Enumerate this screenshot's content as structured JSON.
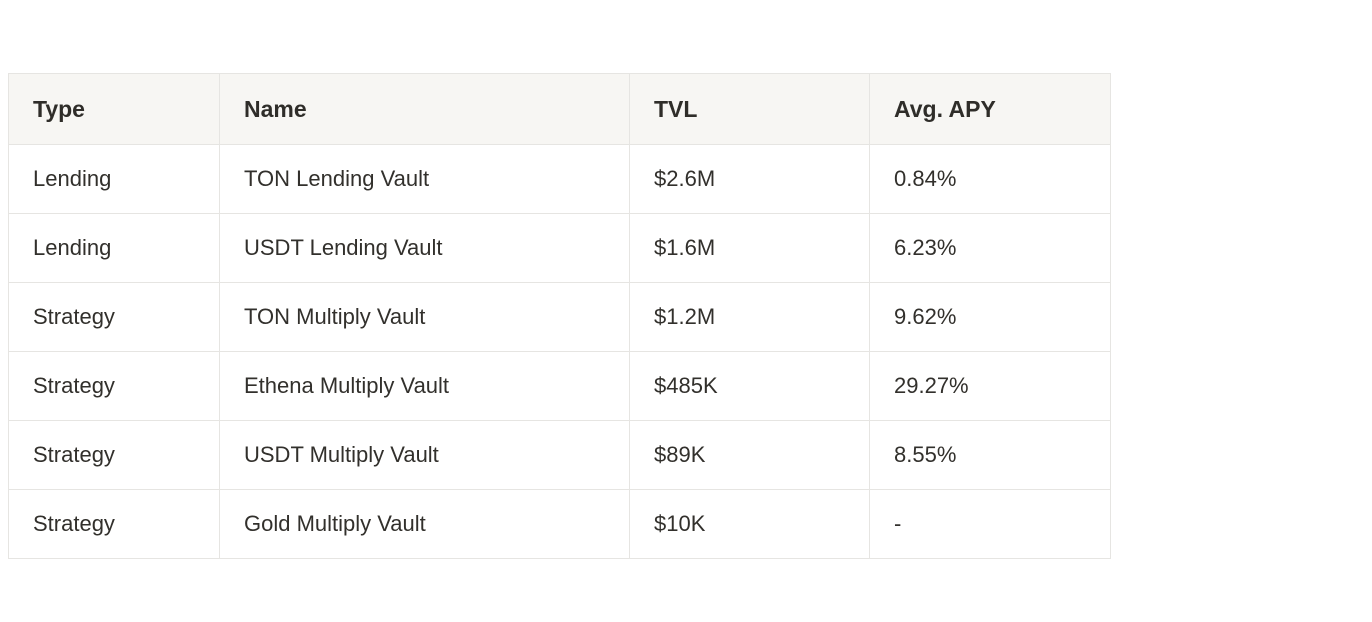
{
  "table": {
    "columns": [
      {
        "key": "type",
        "label": "Type"
      },
      {
        "key": "name",
        "label": "Name"
      },
      {
        "key": "tvl",
        "label": "TVL"
      },
      {
        "key": "apy",
        "label": "Avg. APY"
      }
    ],
    "rows": [
      {
        "type": "Lending",
        "name": "TON Lending Vault",
        "tvl": "$2.6M",
        "apy": "0.84%"
      },
      {
        "type": "Lending",
        "name": "USDT Lending Vault",
        "tvl": "$1.6M",
        "apy": "6.23%"
      },
      {
        "type": "Strategy",
        "name": "TON Multiply Vault",
        "tvl": "$1.2M",
        "apy": "9.62%"
      },
      {
        "type": "Strategy",
        "name": "Ethena Multiply Vault",
        "tvl": "$485K",
        "apy": "29.27%"
      },
      {
        "type": "Strategy",
        "name": "USDT Multiply Vault",
        "tvl": "$89K",
        "apy": "8.55%"
      },
      {
        "type": "Strategy",
        "name": "Gold Multiply Vault",
        "tvl": "$10K",
        "apy": "-"
      }
    ],
    "colors": {
      "header_background": "#f7f6f3",
      "border": "#e6e5e2",
      "text": "#32302c",
      "page_background": "#ffffff"
    }
  }
}
